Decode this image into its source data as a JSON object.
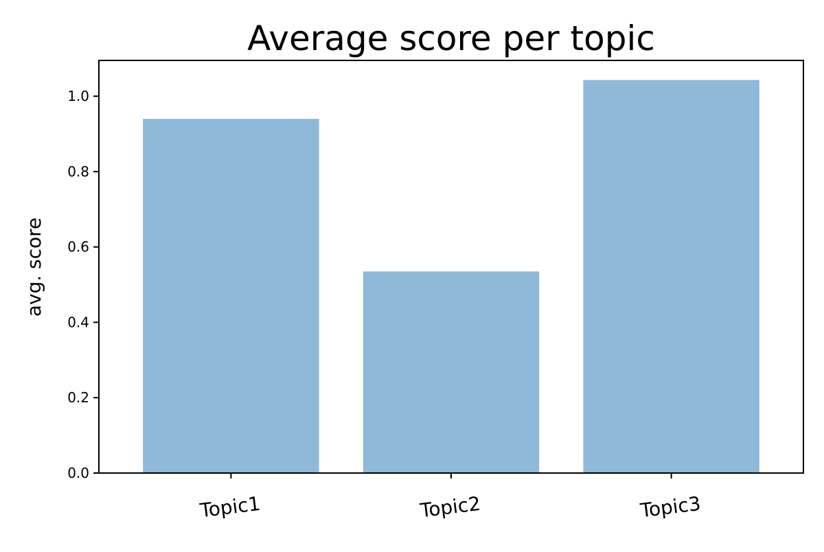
{
  "chart_data": {
    "type": "bar",
    "title": "Average score per topic",
    "xlabel": "",
    "ylabel": "avg. score",
    "categories": [
      "Topic1",
      "Topic2",
      "Topic3"
    ],
    "values": [
      0.94,
      0.535,
      1.043
    ],
    "ylim": [
      0,
      1.095
    ],
    "yticks": [
      0.0,
      0.2,
      0.4,
      0.6,
      0.8,
      1.0
    ],
    "ytick_labels": [
      "0.0",
      "0.2",
      "0.4",
      "0.6",
      "0.8",
      "1.0"
    ],
    "xtick_rotation_deg": -7,
    "bar_color": "#8fb9d9",
    "grid": false,
    "legend": "none"
  }
}
